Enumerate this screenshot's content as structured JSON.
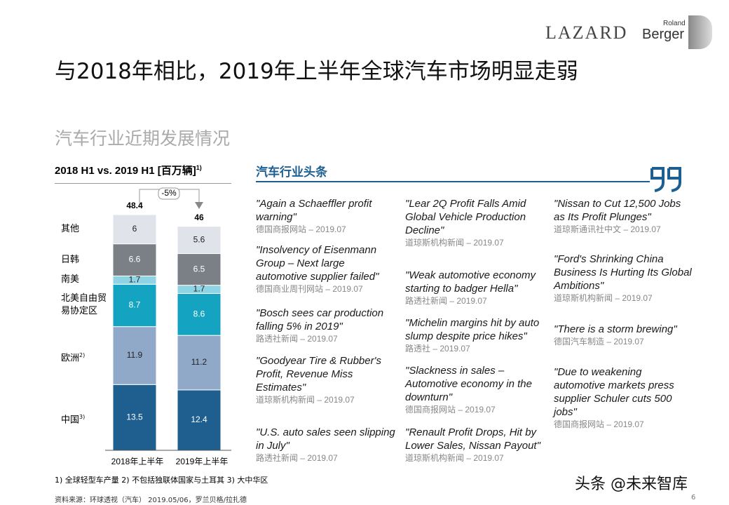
{
  "header": {
    "title": "与2018年相比，2019年上半年全球汽车市场明显走弱",
    "subtitle": "汽车行业近期发展情况",
    "logo_lazard": "LAZARD",
    "logo_roland": "Roland",
    "logo_berger": "Berger"
  },
  "chart_data": {
    "type": "stacked-bar",
    "title": "2018 H1 vs. 2019 H1 [百万辆]",
    "title_note": "1)",
    "categories": [
      "2018年上半年",
      "2019年上半年"
    ],
    "series": [
      {
        "name": "中国",
        "name_note": "3)",
        "color": "#1f5f8f",
        "values": [
          13.5,
          12.4
        ]
      },
      {
        "name": "欧洲",
        "name_note": "2)",
        "color": "#91a9c9",
        "values": [
          11.9,
          11.2
        ]
      },
      {
        "name": "北美自由贸易协定区",
        "color": "#14a3c0",
        "values": [
          8.7,
          8.6
        ]
      },
      {
        "name": "南美",
        "color": "#8fd4e4",
        "values": [
          1.7,
          1.7
        ]
      },
      {
        "name": "日韩",
        "color": "#7b8087",
        "values": [
          6.6,
          6.5
        ]
      },
      {
        "name": "其他",
        "color": "#e0e3ea",
        "values": [
          6.0,
          5.6
        ]
      }
    ],
    "totals": [
      48.4,
      46.0
    ],
    "change": "-5%"
  },
  "news": {
    "heading": "汽车行业头条",
    "columns": [
      [
        {
          "headline": "\"Again a Schaeffler profit warning\"",
          "source": "德国商报网站 – 2019.07"
        },
        {
          "headline": "\"Insolvency of Eisenmann Group – Next large automotive supplier failed\"",
          "source": "德国商业周刊网站 – 2019.07"
        },
        {
          "headline": "\"Bosch sees car production falling 5% in 2019\"",
          "source": "路透社新闻 – 2019.07"
        },
        {
          "headline": "\"Goodyear Tire & Rubber's Profit, Revenue Miss Estimates\"",
          "source": "道琼斯机构新闻 – 2019.07"
        },
        {
          "headline": "\"U.S. auto sales seen slipping in July\"",
          "source": "路透社新闻 – 2019.07"
        }
      ],
      [
        {
          "headline": "\"Lear 2Q Profit Falls Amid Global Vehicle Production Decline\"",
          "source": "道琼斯机构新闻 – 2019.07"
        },
        {
          "headline": "\"Weak automotive economy starting to badger Hella\"",
          "source": "路透社新闻 – 2019.07"
        },
        {
          "headline": "\"Michelin margins hit by auto slump despite price hikes\"",
          "source": "路透社 – 2019.07"
        },
        {
          "headline": "\"Slackness in sales – Automotive economy in the downturn\"",
          "source": "德国商报网站 – 2019.07"
        },
        {
          "headline": "\"Renault Profit Drops, Hit by Lower Sales, Nissan Payout\"",
          "source": "道琼斯机构新闻 – 2019.07"
        }
      ],
      [
        {
          "headline": "\"Nissan to Cut 12,500 Jobs as Its Profit Plunges\"",
          "source": "道琼斯通讯社中文 – 2019.07"
        },
        {
          "headline": "\"Ford's Shrinking China Business Is Hurting Its Global Ambitions\"",
          "source": "道琼斯机构新闻 – 2019.07"
        },
        {
          "headline": "\"There is a storm brewing\"",
          "source": "德国汽车制造 – 2019.07"
        },
        {
          "headline": "\"Due to weakening automotive markets press supplier Schuler cuts 500 jobs\"",
          "source": "德国商报网站 – 2019.07"
        }
      ]
    ]
  },
  "footer": {
    "notes": "1) 全球轻型车产量    2) 不包括独联体国家与土耳其    3) 大中华区",
    "source": "资料来源：环球透视（汽车） 2019.05/06，罗兰贝格/拉扎德",
    "watermark": "头条 @未来智库",
    "page": "6"
  }
}
